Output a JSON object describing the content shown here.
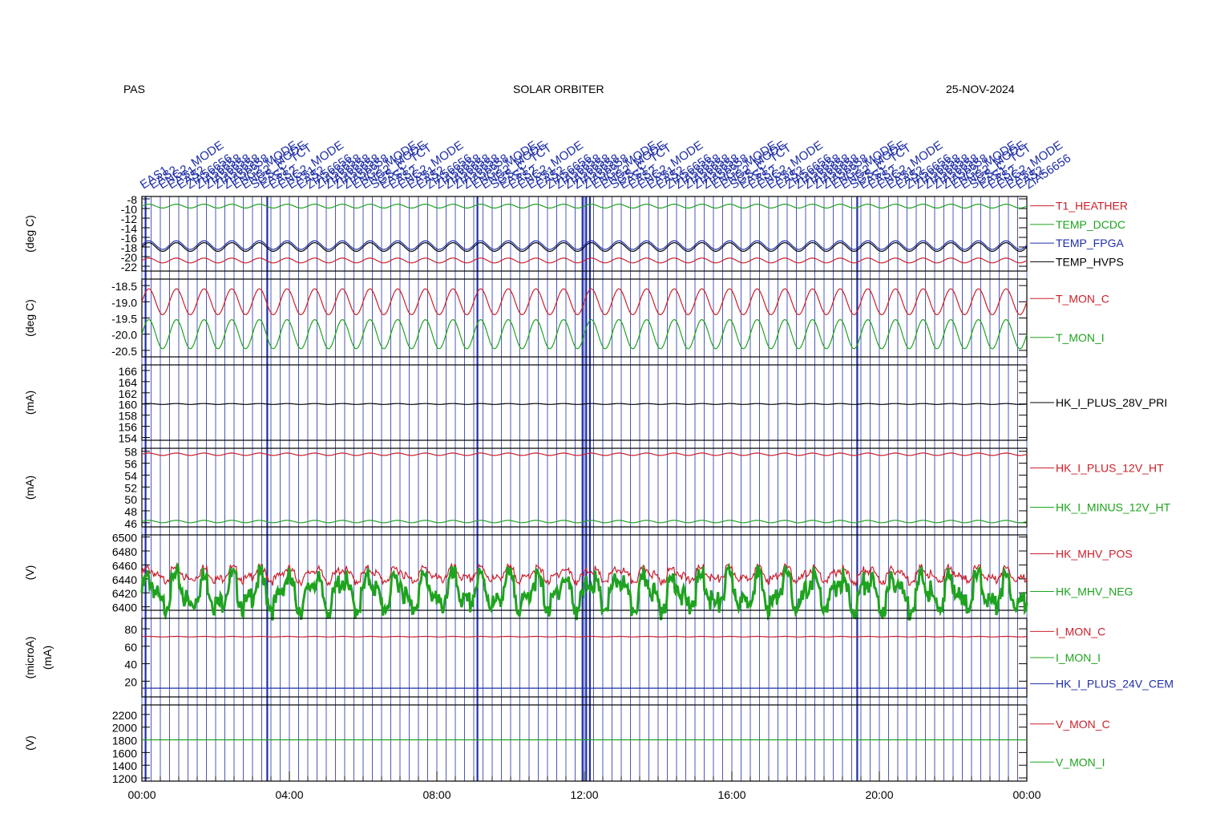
{
  "header": {
    "instrument": "PAS",
    "mission": "SOLAR ORBITER",
    "date": "25-NOV-2024"
  },
  "colors": {
    "red": "#cc1f2a",
    "green": "#1fa31f",
    "blue": "#1f2fa8",
    "black": "#000000",
    "frame": "#000000"
  },
  "chart_data": {
    "type": "line",
    "x_axis": {
      "tick_labels": [
        "00:00",
        "04:00",
        "08:00",
        "12:00",
        "16:00",
        "20:00",
        "00:00"
      ],
      "range_hours": [
        0,
        24
      ]
    },
    "annotations": {
      "labels": [
        "EAS1",
        "EAS2",
        "ENG2_MODE",
        "EAS1",
        "EAS2",
        "ZIA56656",
        "ZIA56658",
        "ZIA56658",
        "ZIA56658",
        "ZIA56658",
        "ENG2_MODE",
        "ENG2_MODE",
        "SGS_C_TCT"
      ],
      "event_hours": [
        0.1,
        3.4,
        9.1,
        11.95,
        12.05,
        12.15,
        19.4
      ],
      "dense_interval_hours": 0.25
    },
    "panels": [
      {
        "ylabel": "(deg C)",
        "yticks": [
          "-8",
          "-10",
          "-12",
          "-14",
          "-16",
          "-18",
          "-20",
          "-22"
        ],
        "ylim": [
          -23,
          -7.5
        ],
        "series": [
          {
            "name": "T1_HEATHER",
            "color": "red",
            "mean": -20.8,
            "amplitude": 0.5,
            "period_hours": 0.75
          },
          {
            "name": "TEMP_DCDC",
            "color": "green",
            "mean": -9.5,
            "amplitude": 0.4,
            "period_hours": 0.75
          },
          {
            "name": "TEMP_FPGA",
            "color": "blue",
            "mean": -17.6,
            "amplitude": 0.9,
            "period_hours": 0.75
          },
          {
            "name": "TEMP_HVPS",
            "color": "black",
            "mean": -18.0,
            "amplitude": 0.9,
            "period_hours": 0.75
          }
        ]
      },
      {
        "ylabel": "(deg C)",
        "yticks": [
          "-18.5",
          "-19.0",
          "-19.5",
          "-20.0",
          "-20.5"
        ],
        "ylim": [
          -20.7,
          -18.3
        ],
        "series": [
          {
            "name": "T_MON_C",
            "color": "red",
            "mean": -19.0,
            "amplitude": 0.4,
            "period_hours": 0.75
          },
          {
            "name": "T_MON_I",
            "color": "green",
            "mean": -20.0,
            "amplitude": 0.45,
            "period_hours": 0.75
          }
        ]
      },
      {
        "ylabel": "(mA)",
        "yticks": [
          "166",
          "164",
          "162",
          "160",
          "158",
          "156",
          "154"
        ],
        "ylim": [
          153.5,
          167
        ],
        "series": [
          {
            "name": "HK_I_PLUS_28V_PRI",
            "color": "black",
            "mean": 160.0,
            "amplitude": 0.08,
            "period_hours": 0.75
          }
        ]
      },
      {
        "ylabel": "(mA)",
        "yticks": [
          "58",
          "56",
          "54",
          "52",
          "50",
          "48",
          "46"
        ],
        "ylim": [
          45.3,
          58.5
        ],
        "series": [
          {
            "name": "HK_I_PLUS_12V_HT",
            "color": "red",
            "mean": 57.5,
            "amplitude": 0.2,
            "period_hours": 0.75
          },
          {
            "name": "HK_I_MINUS_12V_HT",
            "color": "green",
            "mean": 46.2,
            "amplitude": 0.2,
            "period_hours": 0.75
          }
        ]
      },
      {
        "ylabel": "(V)",
        "yticks": [
          "6500",
          "6480",
          "6460",
          "6440",
          "6420",
          "6400"
        ],
        "ylim": [
          6395,
          6503
        ],
        "series": [
          {
            "name": "HK_MHV_POS",
            "color": "red",
            "mean": 6446,
            "amplitude": 8,
            "period_hours": 0.75
          },
          {
            "name": "HK_MHV_NEG",
            "color": "green",
            "mean": 6420,
            "amplitude": 20,
            "period_hours": 0.75
          }
        ]
      },
      {
        "ylabel": "(microA)",
        "ylabel2": "(mA)",
        "yticks": [
          "80",
          "60",
          "40",
          "20"
        ],
        "ylim": [
          2,
          92
        ],
        "series": [
          {
            "name": "I_MON_C",
            "color": "red",
            "mean": 71,
            "amplitude": 0.3,
            "period_hours": 0.75
          },
          {
            "name": "I_MON_I",
            "color": "green",
            "mean": null,
            "amplitude": 0,
            "period_hours": 0.75
          },
          {
            "name": "HK_I_PLUS_24V_CEM",
            "color": "blue",
            "mean": 12,
            "amplitude": 0,
            "period_hours": 0.75
          }
        ]
      },
      {
        "ylabel": "(V)",
        "yticks": [
          "2200",
          "2000",
          "1800",
          "1600",
          "1400",
          "1200"
        ],
        "ylim": [
          1150,
          2350
        ],
        "series": [
          {
            "name": "V_MON_C",
            "color": "red",
            "mean": null,
            "amplitude": 0,
            "period_hours": 0.75
          },
          {
            "name": "V_MON_I",
            "color": "green",
            "mean": 1800,
            "amplitude": 0,
            "period_hours": 0.75
          }
        ]
      }
    ]
  }
}
